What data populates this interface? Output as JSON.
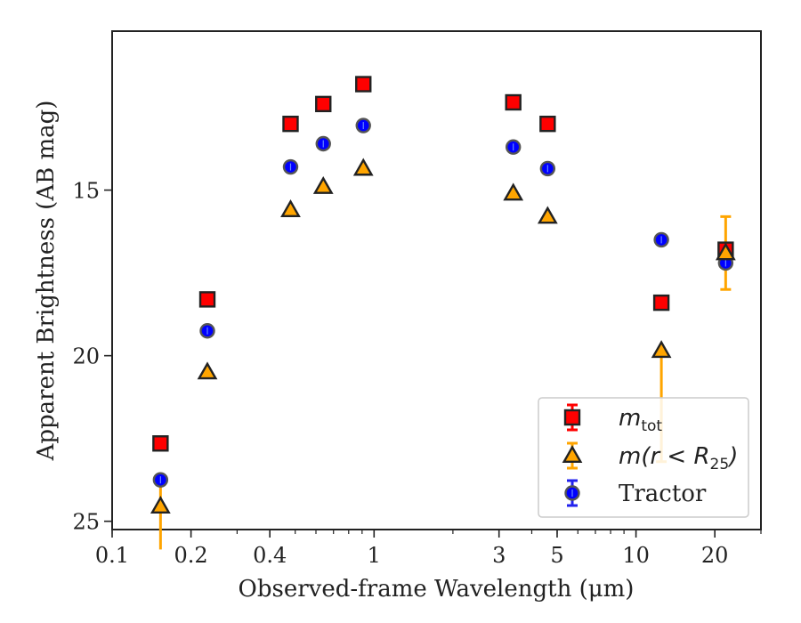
{
  "chart_data": {
    "type": "scatter",
    "title": "",
    "xlabel": "Observed-frame Wavelength (μm)",
    "ylabel": "Apparent Brightness (AB mag)",
    "x_scale": "log",
    "y_inverted": true,
    "xlim": [
      0.1,
      30
    ],
    "ylim": [
      25.25,
      10.2
    ],
    "x_ticks": [
      {
        "value": 0.1,
        "label": "0.1"
      },
      {
        "value": 0.2,
        "label": "0.2"
      },
      {
        "value": 0.4,
        "label": "0.4"
      },
      {
        "value": 1,
        "label": "1"
      },
      {
        "value": 3,
        "label": "3"
      },
      {
        "value": 5,
        "label": "5"
      },
      {
        "value": 10,
        "label": "10"
      },
      {
        "value": 20,
        "label": "20"
      }
    ],
    "y_ticks": [
      {
        "value": 15,
        "label": "15"
      },
      {
        "value": 20,
        "label": "20"
      },
      {
        "value": 25,
        "label": "25"
      }
    ],
    "grid": false,
    "legend_position": "lower-right",
    "series": [
      {
        "name": "m_tot",
        "marker": "square",
        "color": "#ff0000",
        "error_color": "#ff0000",
        "points": [
          {
            "x": 0.153,
            "y": 22.65
          },
          {
            "x": 0.231,
            "y": 18.3
          },
          {
            "x": 0.48,
            "y": 13.0
          },
          {
            "x": 0.64,
            "y": 12.4
          },
          {
            "x": 0.91,
            "y": 11.8
          },
          {
            "x": 3.4,
            "y": 12.35
          },
          {
            "x": 4.6,
            "y": 13.0
          },
          {
            "x": 12.5,
            "y": 18.4,
            "err": [
              0,
              0
            ]
          },
          {
            "x": 22.0,
            "y": 16.8
          }
        ]
      },
      {
        "name": "m(r < R_25)",
        "marker": "triangle",
        "color": "#ffa500",
        "error_color": "#ffa500",
        "points": [
          {
            "x": 0.153,
            "y": 24.55,
            "err_low": 0.75,
            "err_high": 1.3
          },
          {
            "x": 0.231,
            "y": 20.5
          },
          {
            "x": 0.48,
            "y": 15.6
          },
          {
            "x": 0.64,
            "y": 14.9
          },
          {
            "x": 0.91,
            "y": 14.35
          },
          {
            "x": 3.4,
            "y": 15.1
          },
          {
            "x": 4.6,
            "y": 15.8
          },
          {
            "x": 12.5,
            "y": 19.85,
            "err_low": 0,
            "err_high": 3.35
          },
          {
            "x": 22.0,
            "y": 16.9,
            "err_low": 1.1,
            "err_high": 1.1
          }
        ]
      },
      {
        "name": "Tractor",
        "marker": "circle",
        "color": "#0000ff",
        "error_color": "#2222ee",
        "points": [
          {
            "x": 0.153,
            "y": 23.75
          },
          {
            "x": 0.231,
            "y": 19.25
          },
          {
            "x": 0.48,
            "y": 14.3
          },
          {
            "x": 0.64,
            "y": 13.6
          },
          {
            "x": 0.91,
            "y": 13.05
          },
          {
            "x": 3.4,
            "y": 13.7
          },
          {
            "x": 4.6,
            "y": 14.35
          },
          {
            "x": 12.5,
            "y": 16.5
          },
          {
            "x": 22.0,
            "y": 17.2
          }
        ]
      }
    ]
  },
  "legend": {
    "m_tot_main": "m",
    "m_tot_sub": "tot",
    "m_r_main": "m(r < R",
    "m_r_sub": "25",
    "m_r_close": ")",
    "tractor": "Tractor"
  }
}
